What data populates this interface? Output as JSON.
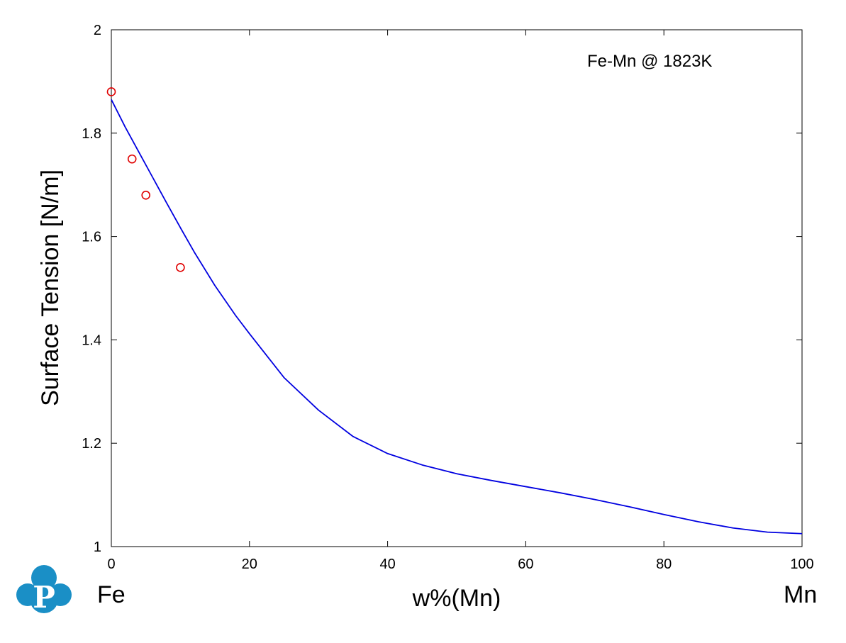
{
  "chart_data": {
    "type": "line",
    "title": "",
    "annotation": "Fe-Mn @ 1823K",
    "xlabel": "w%(Mn)",
    "ylabel": "Surface Tension [N/m]",
    "x_left_label": "Fe",
    "x_right_label": "Mn",
    "xlim": [
      0,
      100
    ],
    "ylim": [
      1,
      2
    ],
    "xticks": [
      0,
      20,
      40,
      60,
      80,
      100
    ],
    "xtick_labels": [
      "0",
      "20",
      "40",
      "60",
      "80",
      "100"
    ],
    "yticks": [
      1,
      1.2,
      1.4,
      1.6,
      1.8,
      2
    ],
    "ytick_labels": [
      "1",
      "1.2",
      "1.4",
      "1.6",
      "1.8",
      "2"
    ],
    "grid": false,
    "series": [
      {
        "kind": "line",
        "color": "#0000e0",
        "x": [
          0,
          2,
          4,
          6,
          8,
          10,
          12,
          15,
          18,
          20,
          25,
          30,
          35,
          40,
          45,
          50,
          55,
          60,
          65,
          70,
          75,
          80,
          85,
          90,
          95,
          100
        ],
        "y": [
          1.865,
          1.812,
          1.763,
          1.714,
          1.665,
          1.617,
          1.57,
          1.505,
          1.447,
          1.412,
          1.327,
          1.264,
          1.213,
          1.18,
          1.158,
          1.141,
          1.128,
          1.116,
          1.104,
          1.091,
          1.077,
          1.062,
          1.048,
          1.036,
          1.028,
          1.025
        ]
      },
      {
        "kind": "scatter",
        "color": "#e00000",
        "x": [
          0,
          3,
          5,
          10
        ],
        "y": [
          1.88,
          1.75,
          1.68,
          1.54
        ]
      }
    ]
  },
  "logo": {
    "letter": "P",
    "color": "#1a8fc6"
  }
}
